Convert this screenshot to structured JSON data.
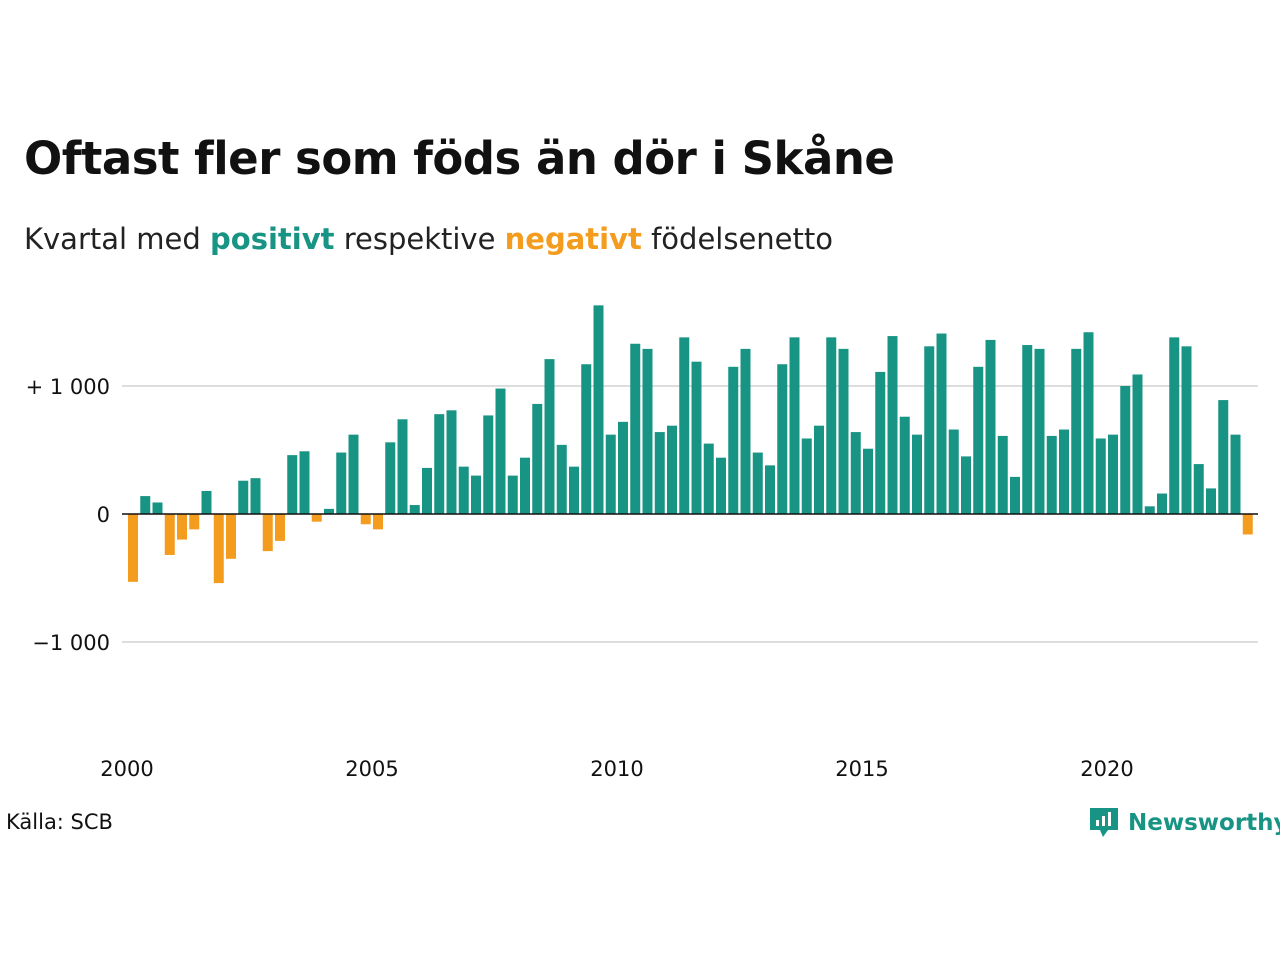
{
  "title": "Oftast fler som föds än dör i Skåne",
  "subtitle": {
    "prefix": "Kvartal med ",
    "positive_word": "positivt",
    "middle": " respektive ",
    "negative_word": "negativt",
    "suffix": " födelsenetto"
  },
  "colors": {
    "positive": "#189485",
    "negative": "#f39c1d",
    "gridline": "#dddddd",
    "zeroline": "#111111"
  },
  "source": "Källa: SCB",
  "logo": {
    "text": "Newsworthy",
    "icon": "newsworthy-chart-bubble-icon",
    "color": "#189485"
  },
  "chart_data": {
    "type": "bar",
    "title": "Oftast fler som föds än dör i Skåne",
    "subtitle": "Kvartal med positivt respektive negativt födelsenetto",
    "xlabel": "",
    "ylabel": "",
    "ylim": [
      -1700,
      1700
    ],
    "grid": true,
    "legend": "none",
    "y_ticks": [
      {
        "value": 1000,
        "label": "+ 1 000"
      },
      {
        "value": 0,
        "label": "0"
      },
      {
        "value": -1000,
        "label": "−1 000"
      }
    ],
    "x_ticks": [
      {
        "index": 0,
        "label": "2000"
      },
      {
        "index": 20,
        "label": "2005"
      },
      {
        "index": 40,
        "label": "2010"
      },
      {
        "index": 60,
        "label": "2015"
      },
      {
        "index": 80,
        "label": "2020"
      }
    ],
    "start": "2000 Q1",
    "end": "2022 Q4",
    "frequency": "quarterly",
    "values": [
      -530,
      140,
      90,
      -320,
      -200,
      -120,
      180,
      -540,
      -350,
      260,
      280,
      -290,
      -210,
      460,
      490,
      -60,
      40,
      480,
      620,
      -80,
      -120,
      560,
      740,
      70,
      360,
      780,
      810,
      370,
      300,
      770,
      980,
      300,
      440,
      860,
      1210,
      540,
      370,
      1170,
      1630,
      620,
      720,
      1330,
      1290,
      640,
      690,
      1380,
      1190,
      550,
      440,
      1150,
      1290,
      480,
      380,
      1170,
      1380,
      590,
      690,
      1380,
      1290,
      640,
      510,
      1110,
      1390,
      760,
      620,
      1310,
      1410,
      660,
      450,
      1150,
      1360,
      610,
      290,
      1320,
      1290,
      610,
      660,
      1290,
      1420,
      590,
      620,
      1000,
      1090,
      60,
      160,
      1380,
      1310,
      390,
      200,
      890,
      620,
      -160
    ]
  }
}
